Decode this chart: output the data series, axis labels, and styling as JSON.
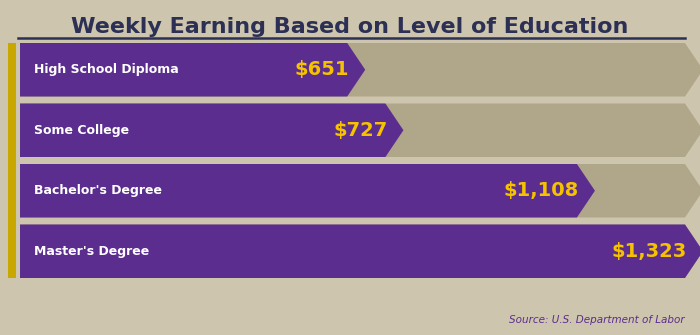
{
  "title": "Weekly Earning Based on Level of Education",
  "source": "Source: U.S. Department of Labor",
  "background_color": "#cec5ae",
  "bar_color": "#5b2d8e",
  "bar_bg_color": "#b0a68a",
  "label_color": "#ffffff",
  "value_color": "#f5c200",
  "title_color": "#2c3054",
  "underline_color": "#2c3054",
  "source_color": "#5b2d8e",
  "accent_color": "#c8a800",
  "categories": [
    "High School Diploma",
    "Some College",
    "Bachelor's Degree",
    "Master's Degree"
  ],
  "values": [
    651,
    727,
    1108,
    1323
  ],
  "value_labels": [
    "$651",
    "$727",
    "$1,108",
    "$1,323"
  ],
  "max_value": 1323
}
